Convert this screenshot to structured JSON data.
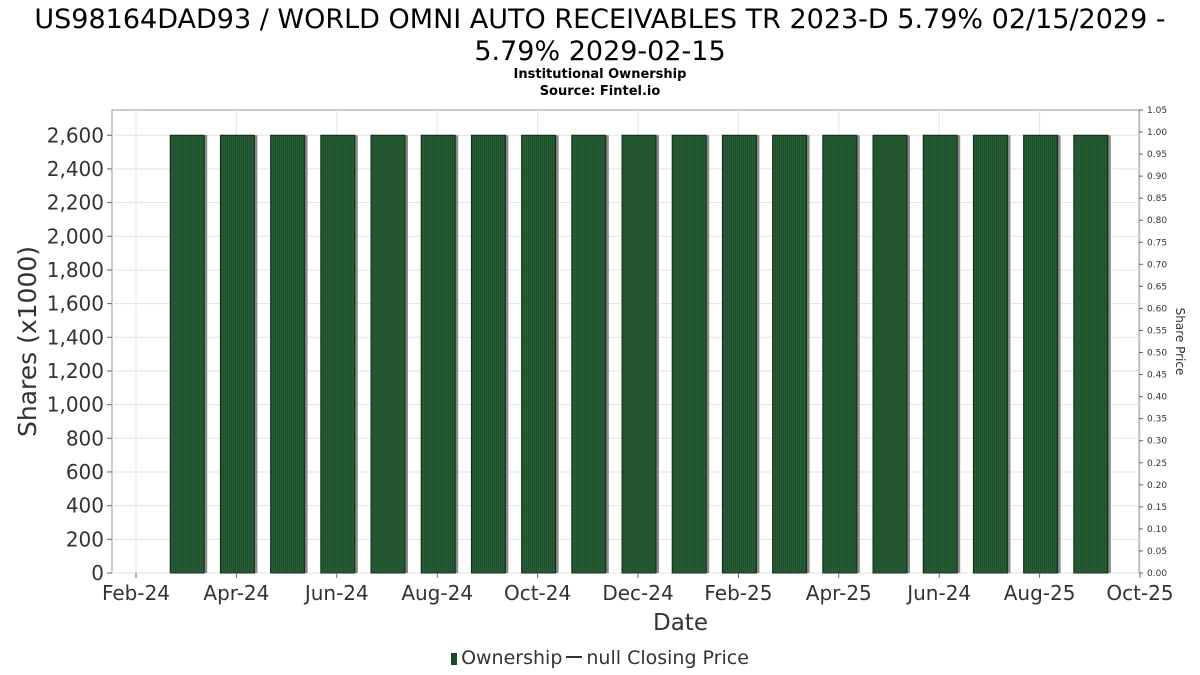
{
  "chart_data": {
    "type": "bar",
    "title_line1": "US98164DAD93 / WORLD OMNI AUTO RECEIVABLES TR 2023-D 5.79% 02/15/2029 -",
    "title_line2": "5.79% 2029-02-15",
    "subtitle_line1": "Institutional Ownership",
    "subtitle_line2": "Source: Fintel.io",
    "xlabel": "Date",
    "ylabel": "Shares (x1000)",
    "y2label": "Share Price",
    "ylim": [
      0,
      2750
    ],
    "y2lim": [
      0,
      1.05
    ],
    "yticks": [
      "0",
      "200",
      "400",
      "600",
      "800",
      "1,000",
      "1,200",
      "1,400",
      "1,600",
      "1,800",
      "2,000",
      "2,200",
      "2,400",
      "2,600"
    ],
    "y2ticks": [
      "0.00",
      "0.05",
      "0.10",
      "0.15",
      "0.20",
      "0.25",
      "0.30",
      "0.35",
      "0.40",
      "0.45",
      "0.50",
      "0.55",
      "0.60",
      "0.65",
      "0.70",
      "0.75",
      "0.80",
      "0.85",
      "0.90",
      "0.95",
      "1.00",
      "1.05"
    ],
    "xticks": [
      "Feb-24",
      "Apr-24",
      "Jun-24",
      "Aug-24",
      "Oct-24",
      "Dec-24",
      "Feb-25",
      "Apr-25",
      "Jun-24",
      "Aug-25",
      "Oct-25"
    ],
    "values": [
      2600,
      2600,
      2600,
      2600,
      2600,
      2600,
      2600,
      2600,
      2600,
      2600,
      2600,
      2600,
      2600,
      2600,
      2600,
      2600,
      2600,
      2600,
      2600
    ],
    "grid": true,
    "legend_position": "bottom",
    "series": [
      {
        "name": "Ownership",
        "color": "#1a4a28"
      },
      {
        "name": "null Closing Price",
        "color": "#333333"
      }
    ]
  }
}
